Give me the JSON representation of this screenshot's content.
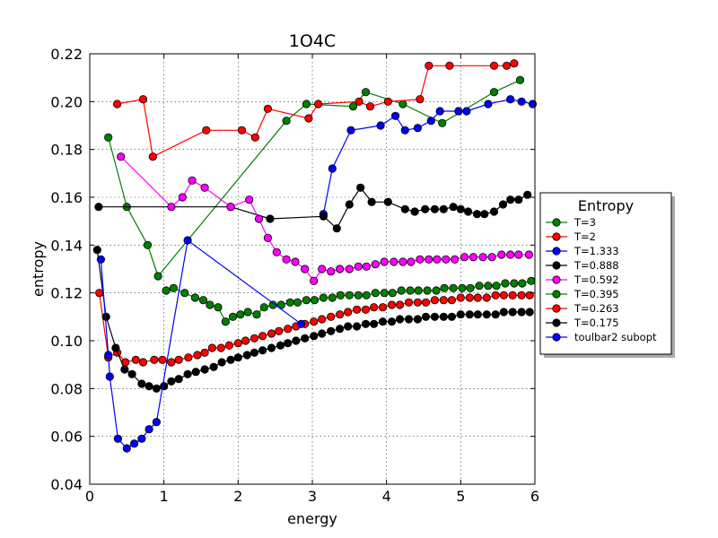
{
  "chart_data": {
    "type": "line",
    "title": "1O4C",
    "xlabel": "energy",
    "ylabel": "entropy",
    "xlim": [
      0,
      6
    ],
    "ylim": [
      0.04,
      0.22
    ],
    "xticks": [
      0,
      1,
      2,
      3,
      4,
      5,
      6
    ],
    "yticks": [
      0.04,
      0.06,
      0.08,
      0.1,
      0.12,
      0.14,
      0.16,
      0.18,
      0.2,
      0.22
    ],
    "xtick_labels": [
      "0",
      "1",
      "2",
      "3",
      "4",
      "5",
      "6"
    ],
    "ytick_labels": [
      "0.04",
      "0.06",
      "0.08",
      "0.10",
      "0.12",
      "0.14",
      "0.16",
      "0.18",
      "0.20",
      "0.22"
    ],
    "grid": true,
    "legend": {
      "title": "Entropy",
      "position": "right-outside"
    },
    "series": [
      {
        "name": "T=3",
        "color": "#008000",
        "x": [
          0.25,
          0.5,
          0.78,
          0.92,
          2.65,
          2.92,
          3.55,
          3.72,
          4.22,
          4.75,
          5.45,
          5.8
        ],
        "y": [
          0.185,
          0.156,
          0.14,
          0.127,
          0.192,
          0.199,
          0.198,
          0.204,
          0.199,
          0.191,
          0.204,
          0.209
        ]
      },
      {
        "name": "T=2",
        "color": "#ff0000",
        "x": [
          0.37,
          0.72,
          0.85,
          1.57,
          2.05,
          2.23,
          2.4,
          2.95,
          3.08,
          3.63,
          3.78,
          4.02,
          4.45,
          4.57,
          4.85,
          5.45,
          5.62,
          5.72
        ],
        "y": [
          0.199,
          0.201,
          0.177,
          0.188,
          0.188,
          0.185,
          0.197,
          0.193,
          0.199,
          0.2,
          0.198,
          0.2,
          0.201,
          0.215,
          0.215,
          0.215,
          0.215,
          0.216
        ]
      },
      {
        "name": "T=1.333",
        "color": "#0000ff",
        "x": [
          3.15,
          3.27,
          3.52,
          3.92,
          4.12,
          4.25,
          4.42,
          4.6,
          4.72,
          4.97,
          5.08,
          5.37,
          5.67,
          5.82,
          5.97
        ],
        "y": [
          0.153,
          0.172,
          0.188,
          0.19,
          0.194,
          0.188,
          0.189,
          0.192,
          0.196,
          0.196,
          0.196,
          0.199,
          0.201,
          0.2,
          0.199
        ]
      },
      {
        "name": "T=0.888",
        "color": "#000000",
        "x": [
          0.12,
          1.9,
          2.43,
          3.15,
          3.33,
          3.5,
          3.65,
          3.8,
          4.02,
          4.25,
          4.38,
          4.52,
          4.65,
          4.77,
          4.9,
          5.0,
          5.1,
          5.22,
          5.32,
          5.45,
          5.57,
          5.67,
          5.78,
          5.9
        ],
        "y": [
          0.156,
          0.156,
          0.151,
          0.152,
          0.147,
          0.157,
          0.164,
          0.158,
          0.158,
          0.155,
          0.154,
          0.155,
          0.155,
          0.155,
          0.156,
          0.155,
          0.154,
          0.153,
          0.153,
          0.154,
          0.157,
          0.159,
          0.159,
          0.161
        ]
      },
      {
        "name": "T=0.592",
        "color": "#ff00ff",
        "x": [
          0.42,
          1.1,
          1.25,
          1.38,
          1.55,
          1.9,
          2.15,
          2.28,
          2.4,
          2.52,
          2.65,
          2.77,
          2.9,
          3.02,
          3.13,
          3.25,
          3.37,
          3.5,
          3.62,
          3.73,
          3.85,
          3.97,
          4.1,
          4.22,
          4.33,
          4.45,
          4.57,
          4.68,
          4.8,
          4.92,
          5.05,
          5.17,
          5.3,
          5.42,
          5.55,
          5.67,
          5.78,
          5.92
        ],
        "y": [
          0.177,
          0.156,
          0.16,
          0.167,
          0.164,
          0.156,
          0.159,
          0.151,
          0.143,
          0.137,
          0.134,
          0.133,
          0.13,
          0.125,
          0.13,
          0.129,
          0.13,
          0.13,
          0.131,
          0.131,
          0.132,
          0.133,
          0.133,
          0.133,
          0.133,
          0.134,
          0.134,
          0.134,
          0.134,
          0.134,
          0.135,
          0.135,
          0.135,
          0.135,
          0.136,
          0.136,
          0.136,
          0.136
        ]
      },
      {
        "name": "T=0.395",
        "color": "#008000",
        "x": [
          1.03,
          1.13,
          1.28,
          1.42,
          1.53,
          1.62,
          1.73,
          1.83,
          1.93,
          2.03,
          2.13,
          2.25,
          2.35,
          2.47,
          2.58,
          2.7,
          2.8,
          2.92,
          3.03,
          3.15,
          3.27,
          3.38,
          3.5,
          3.62,
          3.73,
          3.85,
          3.97,
          4.08,
          4.2,
          4.32,
          4.43,
          4.55,
          4.67,
          4.78,
          4.9,
          5.02,
          5.13,
          5.25,
          5.37,
          5.48,
          5.6,
          5.72,
          5.83,
          5.95
        ],
        "y": [
          0.121,
          0.122,
          0.12,
          0.118,
          0.117,
          0.115,
          0.114,
          0.108,
          0.11,
          0.111,
          0.112,
          0.111,
          0.114,
          0.115,
          0.115,
          0.116,
          0.116,
          0.117,
          0.117,
          0.118,
          0.118,
          0.119,
          0.119,
          0.119,
          0.119,
          0.12,
          0.12,
          0.12,
          0.121,
          0.121,
          0.121,
          0.121,
          0.121,
          0.122,
          0.122,
          0.122,
          0.122,
          0.123,
          0.123,
          0.123,
          0.124,
          0.124,
          0.124,
          0.125
        ]
      },
      {
        "name": "T=0.263",
        "color": "#ff0000",
        "x": [
          0.13,
          0.25,
          0.37,
          0.48,
          0.62,
          0.72,
          0.87,
          0.98,
          1.1,
          1.2,
          1.33,
          1.45,
          1.55,
          1.65,
          1.77,
          1.88,
          2.0,
          2.1,
          2.22,
          2.33,
          2.45,
          2.55,
          2.67,
          2.78,
          2.9,
          3.02,
          3.13,
          3.25,
          3.37,
          3.48,
          3.6,
          3.72,
          3.83,
          3.95,
          4.07,
          4.18,
          4.3,
          4.42,
          4.53,
          4.65,
          4.77,
          4.88,
          5.0,
          5.12,
          5.23,
          5.35,
          5.47,
          5.58,
          5.7,
          5.82,
          5.93
        ],
        "y": [
          0.12,
          0.093,
          0.095,
          0.091,
          0.092,
          0.091,
          0.092,
          0.092,
          0.091,
          0.092,
          0.093,
          0.094,
          0.095,
          0.097,
          0.097,
          0.098,
          0.099,
          0.1,
          0.101,
          0.102,
          0.103,
          0.104,
          0.105,
          0.106,
          0.107,
          0.108,
          0.109,
          0.11,
          0.111,
          0.112,
          0.113,
          0.113,
          0.114,
          0.114,
          0.115,
          0.115,
          0.116,
          0.116,
          0.116,
          0.117,
          0.117,
          0.117,
          0.118,
          0.118,
          0.118,
          0.118,
          0.119,
          0.119,
          0.119,
          0.119,
          0.119
        ]
      },
      {
        "name": "T=0.175",
        "color": "#000000",
        "x": [
          0.1,
          0.22,
          0.35,
          0.47,
          0.57,
          0.7,
          0.8,
          0.9,
          1.0,
          1.1,
          1.2,
          1.32,
          1.43,
          1.55,
          1.67,
          1.78,
          1.9,
          2.0,
          2.12,
          2.22,
          2.33,
          2.45,
          2.57,
          2.67,
          2.78,
          2.9,
          3.02,
          3.13,
          3.25,
          3.37,
          3.48,
          3.6,
          3.72,
          3.83,
          3.95,
          4.07,
          4.18,
          4.3,
          4.42,
          4.53,
          4.65,
          4.77,
          4.88,
          5.0,
          5.12,
          5.23,
          5.35,
          5.47,
          5.58,
          5.7,
          5.82,
          5.93
        ],
        "y": [
          0.138,
          0.11,
          0.097,
          0.088,
          0.086,
          0.082,
          0.081,
          0.08,
          0.081,
          0.083,
          0.084,
          0.086,
          0.087,
          0.088,
          0.089,
          0.091,
          0.092,
          0.093,
          0.094,
          0.095,
          0.096,
          0.097,
          0.098,
          0.099,
          0.1,
          0.101,
          0.102,
          0.103,
          0.104,
          0.105,
          0.106,
          0.106,
          0.107,
          0.107,
          0.108,
          0.108,
          0.109,
          0.109,
          0.109,
          0.11,
          0.11,
          0.11,
          0.11,
          0.111,
          0.111,
          0.111,
          0.111,
          0.111,
          0.112,
          0.112,
          0.112,
          0.112
        ]
      },
      {
        "name": "toulbar2 subopt",
        "color": "#0000ff",
        "x": [
          0.15,
          0.25,
          0.27,
          0.38,
          0.5,
          0.6,
          0.7,
          0.8,
          0.9,
          1.32,
          2.85
        ],
        "y": [
          0.134,
          0.094,
          0.085,
          0.059,
          0.055,
          0.057,
          0.059,
          0.063,
          0.066,
          0.142,
          0.107
        ]
      }
    ]
  }
}
